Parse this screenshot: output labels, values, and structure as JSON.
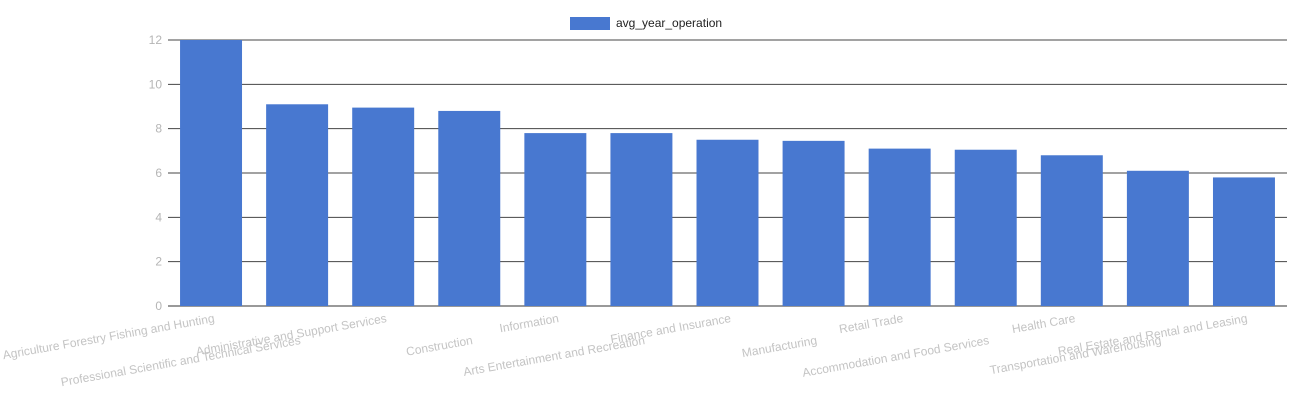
{
  "chart_data": {
    "type": "bar",
    "categories": [
      "Agriculture Forestry Fishing and Hunting",
      "Professional Scientific and Technical Services",
      "Administrative and Support Services",
      "Construction",
      "Information",
      "Arts Entertainment and Recreation",
      "Finance and Insurance",
      "Manufacturing",
      "Retail Trade",
      "Accommodation and Food Services",
      "Health Care",
      "Transportation and Warehousing",
      "Real Estate and Rental and Leasing"
    ],
    "series": [
      {
        "name": "avg_year_operation",
        "values": [
          12.0,
          9.1,
          8.95,
          8.8,
          7.8,
          7.8,
          7.5,
          7.45,
          7.1,
          7.05,
          6.8,
          6.1,
          5.8
        ]
      }
    ],
    "ylim": [
      0,
      12
    ],
    "yticks": [
      "0",
      "2",
      "4",
      "6",
      "8",
      "10",
      "12"
    ],
    "grid": true,
    "legend_position": "top",
    "bar_color": "#4878d0",
    "xlabel": "",
    "ylabel": "",
    "title": ""
  }
}
